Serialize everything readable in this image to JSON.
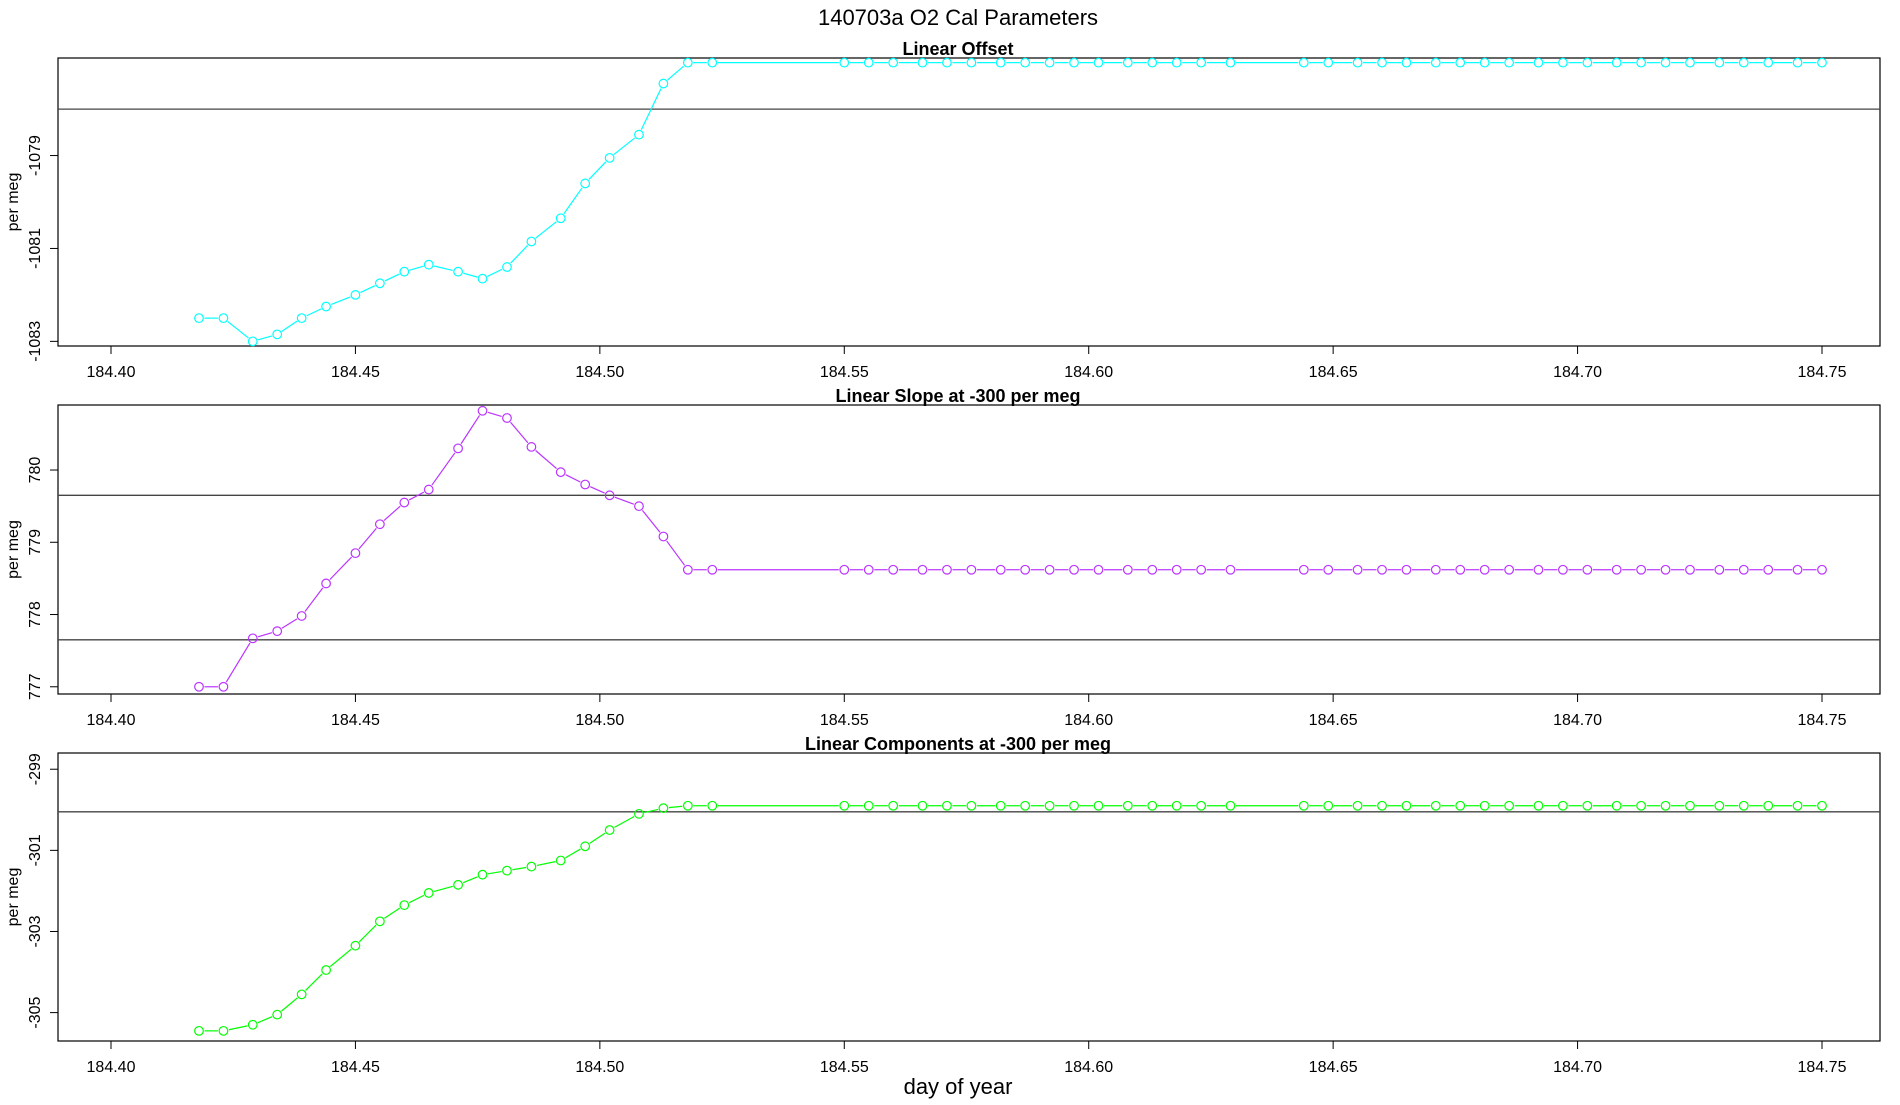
{
  "figure": {
    "title": "140703a   O2 Cal Parameters",
    "xlabel": "day of year"
  },
  "chart_data": [
    {
      "type": "line",
      "title": "Linear Offset",
      "ylabel": "per meg",
      "color": "#00ffff",
      "xlim": [
        184.4,
        184.75
      ],
      "xticks": [
        184.4,
        184.45,
        184.5,
        184.55,
        184.6,
        184.65,
        184.7,
        184.75
      ],
      "xtick_labels": [
        "184.40",
        "184.45",
        "184.50",
        "184.55",
        "184.60",
        "184.65",
        "184.70",
        "184.75"
      ],
      "ylim": [
        -1083.1,
        -1076.9
      ],
      "yticks": [
        -1079,
        -1081,
        -1083
      ],
      "ytick_labels": [
        "-1079",
        "-1081",
        "-1083"
      ],
      "hlines": [
        -1078.0
      ],
      "series": [
        {
          "x": [
            184.418,
            184.423,
            184.429,
            184.434,
            184.439,
            184.444,
            184.45,
            184.455,
            184.46,
            184.465,
            184.471,
            184.476,
            184.481,
            184.486,
            184.492,
            184.497,
            184.502,
            184.508,
            184.513,
            184.518,
            184.523,
            184.55,
            184.555,
            184.56,
            184.566,
            184.571,
            184.576,
            184.582,
            184.587,
            184.592,
            184.597,
            184.602,
            184.608,
            184.613,
            184.618,
            184.623,
            184.629,
            184.644,
            184.649,
            184.655,
            184.66,
            184.665,
            184.671,
            184.676,
            184.681,
            184.686,
            184.692,
            184.697,
            184.702,
            184.708,
            184.713,
            184.718,
            184.723,
            184.729,
            184.734,
            184.739,
            184.745,
            184.75
          ],
          "y": [
            -1082.5,
            -1082.5,
            -1083.0,
            -1082.85,
            -1082.5,
            -1082.25,
            -1082.0,
            -1081.75,
            -1081.5,
            -1081.35,
            -1081.5,
            -1081.65,
            -1081.4,
            -1080.85,
            -1080.35,
            -1079.6,
            -1079.05,
            -1078.55,
            -1077.45,
            -1077.0,
            -1077.0,
            -1077.0,
            -1077.0,
            -1077.0,
            -1077.0,
            -1077.0,
            -1077.0,
            -1077.0,
            -1077.0,
            -1077.0,
            -1077.0,
            -1077.0,
            -1077.0,
            -1077.0,
            -1077.0,
            -1077.0,
            -1077.0,
            -1077.0,
            -1077.0,
            -1077.0,
            -1077.0,
            -1077.0,
            -1077.0,
            -1077.0,
            -1077.0,
            -1077.0,
            -1077.0,
            -1077.0,
            -1077.0,
            -1077.0,
            -1077.0,
            -1077.0,
            -1077.0,
            -1077.0,
            -1077.0,
            -1077.0,
            -1077.0,
            -1077.0
          ]
        }
      ]
    },
    {
      "type": "line",
      "title": "Linear Slope at -300 per meg",
      "ylabel": "per meg",
      "color": "#bb33ff",
      "xlim": [
        184.4,
        184.75
      ],
      "xticks": [
        184.4,
        184.45,
        184.5,
        184.55,
        184.6,
        184.65,
        184.7,
        184.75
      ],
      "xtick_labels": [
        "184.40",
        "184.45",
        "184.50",
        "184.55",
        "184.60",
        "184.65",
        "184.70",
        "184.75"
      ],
      "ylim": [
        776.9,
        780.9
      ],
      "yticks": [
        777,
        778,
        779,
        780
      ],
      "ytick_labels": [
        "777",
        "778",
        "779",
        "780"
      ],
      "hlines": [
        779.65,
        777.65
      ],
      "series": [
        {
          "x": [
            184.418,
            184.423,
            184.429,
            184.434,
            184.439,
            184.444,
            184.45,
            184.455,
            184.46,
            184.465,
            184.471,
            184.476,
            184.481,
            184.486,
            184.492,
            184.497,
            184.502,
            184.508,
            184.513,
            184.518,
            184.523,
            184.55,
            184.555,
            184.56,
            184.566,
            184.571,
            184.576,
            184.582,
            184.587,
            184.592,
            184.597,
            184.602,
            184.608,
            184.613,
            184.618,
            184.623,
            184.629,
            184.644,
            184.649,
            184.655,
            184.66,
            184.665,
            184.671,
            184.676,
            184.681,
            184.686,
            184.692,
            184.697,
            184.702,
            184.708,
            184.713,
            184.718,
            184.723,
            184.729,
            184.734,
            184.739,
            184.745,
            184.75
          ],
          "y": [
            777.0,
            777.0,
            777.67,
            777.77,
            777.98,
            778.43,
            778.85,
            779.25,
            779.55,
            779.73,
            780.3,
            780.82,
            780.72,
            780.32,
            779.97,
            779.8,
            779.65,
            779.5,
            779.08,
            778.62,
            778.62,
            778.62,
            778.62,
            778.62,
            778.62,
            778.62,
            778.62,
            778.62,
            778.62,
            778.62,
            778.62,
            778.62,
            778.62,
            778.62,
            778.62,
            778.62,
            778.62,
            778.62,
            778.62,
            778.62,
            778.62,
            778.62,
            778.62,
            778.62,
            778.62,
            778.62,
            778.62,
            778.62,
            778.62,
            778.62,
            778.62,
            778.62,
            778.62,
            778.62,
            778.62,
            778.62,
            778.62,
            778.62
          ]
        }
      ]
    },
    {
      "type": "line",
      "title": "Linear Components at -300 per meg",
      "ylabel": "per meg",
      "color": "#00ff00",
      "xlim": [
        184.4,
        184.75
      ],
      "xticks": [
        184.4,
        184.45,
        184.5,
        184.55,
        184.6,
        184.65,
        184.7,
        184.75
      ],
      "xtick_labels": [
        "184.40",
        "184.45",
        "184.50",
        "184.55",
        "184.60",
        "184.65",
        "184.70",
        "184.75"
      ],
      "ylim": [
        -305.7,
        -298.6
      ],
      "yticks": [
        -299,
        -301,
        -303,
        -305
      ],
      "ytick_labels": [
        "-299",
        "-301",
        "-303",
        "-305"
      ],
      "hlines": [
        -300.05
      ],
      "series": [
        {
          "x": [
            184.418,
            184.423,
            184.429,
            184.434,
            184.439,
            184.444,
            184.45,
            184.455,
            184.46,
            184.465,
            184.471,
            184.476,
            184.481,
            184.486,
            184.492,
            184.497,
            184.502,
            184.508,
            184.513,
            184.518,
            184.523,
            184.55,
            184.555,
            184.56,
            184.566,
            184.571,
            184.576,
            184.582,
            184.587,
            184.592,
            184.597,
            184.602,
            184.608,
            184.613,
            184.618,
            184.623,
            184.629,
            184.644,
            184.649,
            184.655,
            184.66,
            184.665,
            184.671,
            184.676,
            184.681,
            184.686,
            184.692,
            184.697,
            184.702,
            184.708,
            184.713,
            184.718,
            184.723,
            184.729,
            184.734,
            184.739,
            184.745,
            184.75
          ],
          "y": [
            -305.45,
            -305.45,
            -305.3,
            -305.05,
            -304.55,
            -303.95,
            -303.35,
            -302.75,
            -302.35,
            -302.05,
            -301.85,
            -301.6,
            -301.5,
            -301.4,
            -301.25,
            -300.9,
            -300.5,
            -300.1,
            -299.96,
            -299.9,
            -299.9,
            -299.9,
            -299.9,
            -299.9,
            -299.9,
            -299.9,
            -299.9,
            -299.9,
            -299.9,
            -299.9,
            -299.9,
            -299.9,
            -299.9,
            -299.9,
            -299.9,
            -299.9,
            -299.9,
            -299.9,
            -299.9,
            -299.9,
            -299.9,
            -299.9,
            -299.9,
            -299.9,
            -299.9,
            -299.9,
            -299.9,
            -299.9,
            -299.9,
            -299.9,
            -299.9,
            -299.9,
            -299.9,
            -299.9,
            -299.9,
            -299.9,
            -299.9,
            -299.9
          ]
        }
      ]
    }
  ]
}
